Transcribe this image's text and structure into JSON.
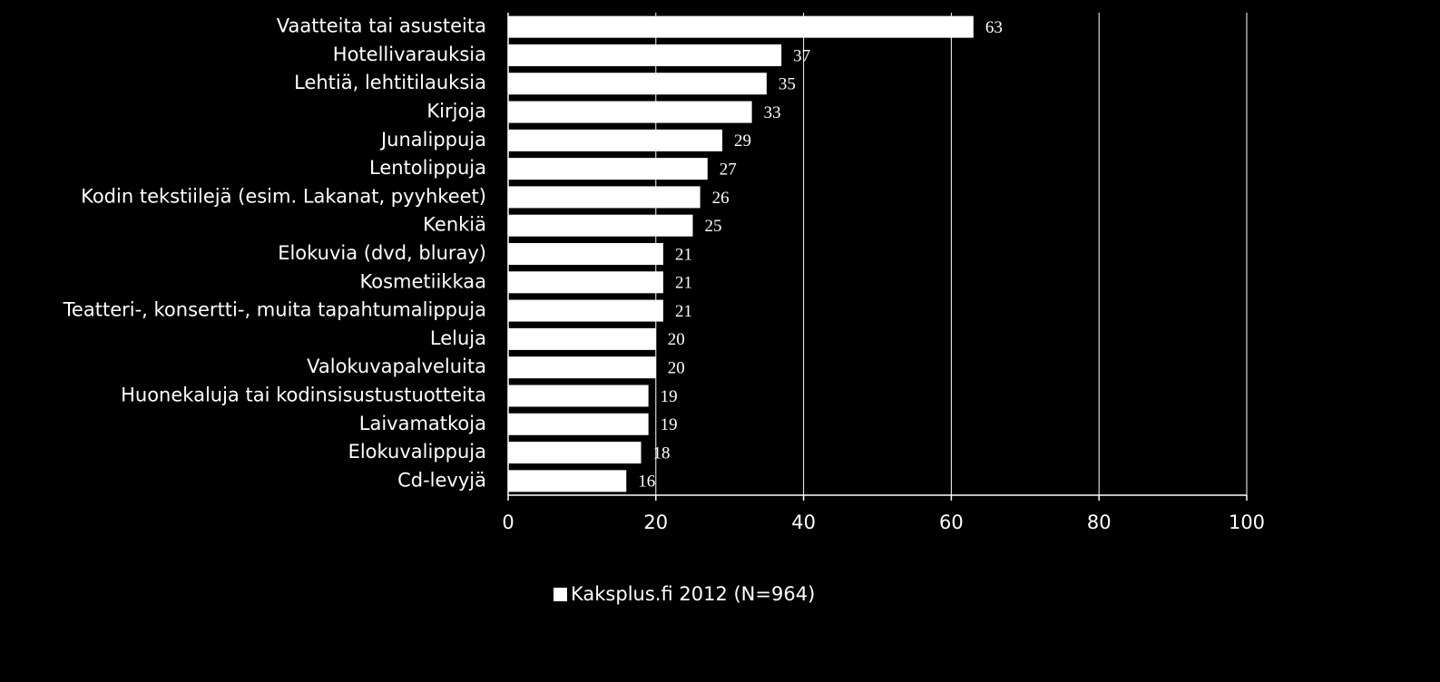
{
  "chart_data": {
    "type": "bar",
    "orientation": "horizontal",
    "categories": [
      "Vaatteita tai asusteita",
      "Hotellivarauksia",
      "Lehtiä, lehtitilauksia",
      "Kirjoja",
      "Junalippuja",
      "Lentolippuja",
      "Kodin tekstiilejä (esim. Lakanat, pyyhkeet)",
      "Kenkiä",
      "Elokuvia (dvd, bluray)",
      "Kosmetiikkaa",
      "Teatteri-, konsertti-, muita tapahtumalippuja",
      "Leluja",
      "Valokuvapalveluita",
      "Huonekaluja tai kodinsisustustuotteita",
      "Laivamatkoja",
      "Elokuvalippuja",
      "Cd-levyjä"
    ],
    "series": [
      {
        "name": "Kaksplus.fi 2012 (N=964)",
        "color": "#ffffff",
        "values": [
          63,
          37,
          35,
          33,
          29,
          27,
          26,
          25,
          21,
          21,
          21,
          20,
          20,
          19,
          19,
          18,
          16
        ]
      }
    ],
    "xlim": [
      0,
      100
    ],
    "xticks": [
      0,
      20,
      40,
      60,
      80,
      100
    ],
    "grid": true,
    "legend": "bottom"
  }
}
